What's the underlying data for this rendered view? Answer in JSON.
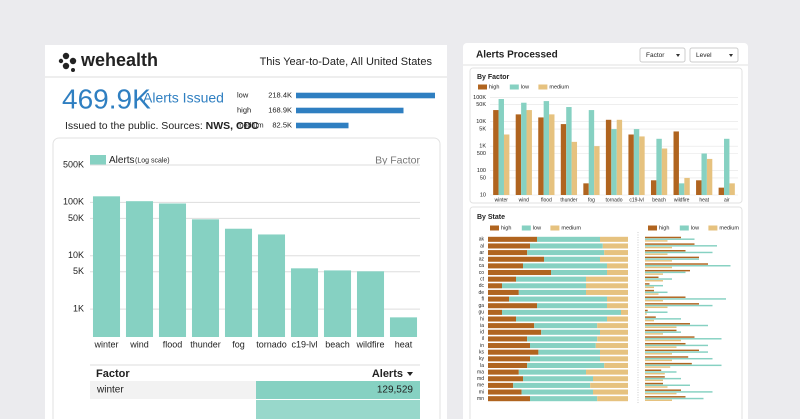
{
  "header": {
    "brand": "wehealth",
    "scope": "This Year-to-Date, All United States"
  },
  "summary": {
    "total": "469.9K",
    "total_label": "Alerts Issued",
    "note": "Issued to the public. Sources:",
    "sources": "NWS, CDC"
  },
  "panel": {
    "title": "Alerts Processed",
    "filters": [
      "Factor",
      "Level"
    ]
  },
  "table": {
    "columns": [
      "Factor",
      "Alerts"
    ],
    "rows": [
      [
        "winter",
        "129,529"
      ]
    ]
  },
  "chart_data": [
    {
      "type": "hbar",
      "categories": [
        "low",
        "high",
        "medium"
      ],
      "values": [
        218400,
        168900,
        82500
      ],
      "value_labels": [
        "218.4K",
        "168.9K",
        "82.5K"
      ],
      "color": "#2f7fc1",
      "xlim": [
        0,
        218400
      ]
    },
    {
      "type": "bar",
      "title": "By Factor",
      "legend": "Alerts",
      "note": "(Log scale)",
      "log_scale": true,
      "grid": true,
      "color": "#86d1c2",
      "categories": [
        "winter",
        "wind",
        "flood",
        "thunder",
        "fog",
        "tornado",
        "c19-lvl",
        "beach",
        "wildfire",
        "heat"
      ],
      "values": [
        129529,
        105000,
        95000,
        48000,
        32000,
        25000,
        5800,
        5300,
        5100,
        700
      ],
      "ylim": [
        300,
        500000
      ],
      "yticks": [
        {
          "value": 1000,
          "label": "1K"
        },
        {
          "value": 5000,
          "label": "5K"
        },
        {
          "value": 10000,
          "label": "10K"
        },
        {
          "value": 50000,
          "label": "50K"
        },
        {
          "value": 100000,
          "label": "100K"
        },
        {
          "value": 500000,
          "label": "500K"
        }
      ]
    },
    {
      "type": "grouped_bar",
      "title": "By Factor",
      "log_scale": true,
      "grid": true,
      "categories": [
        "winter",
        "wind",
        "flood",
        "thunder",
        "fog",
        "tornado",
        "c19-lvl",
        "beach",
        "wildfire",
        "heat",
        "air"
      ],
      "series": [
        {
          "name": "high",
          "color": "#b0641f",
          "values": [
            30000,
            20000,
            15000,
            8000,
            30,
            12000,
            3000,
            40,
            4000,
            40,
            20
          ]
        },
        {
          "name": "low",
          "color": "#86d1c2",
          "values": [
            85000,
            60000,
            70000,
            40000,
            30000,
            5000,
            5000,
            2000,
            30,
            500,
            2000
          ]
        },
        {
          "name": "medium",
          "color": "#e6c27f",
          "values": [
            3000,
            30000,
            20000,
            1500,
            1000,
            12000,
            2500,
            800,
            50,
            300,
            30
          ]
        }
      ],
      "ylim": [
        10,
        150000
      ],
      "yticks": [
        10,
        50,
        100,
        500,
        {
          "value": 1000,
          "label": "1K"
        },
        {
          "value": 5000,
          "label": "5K"
        },
        {
          "value": 10000,
          "label": "10K"
        },
        {
          "value": 50000,
          "label": "50K"
        },
        {
          "value": 100000,
          "label": "100K"
        }
      ]
    },
    {
      "type": "stacked_hbar",
      "title": "By State",
      "categories": [
        "ak",
        "al",
        "ar",
        "az",
        "ca",
        "co",
        "ct",
        "dc",
        "de",
        "fl",
        "ga",
        "gu",
        "hi",
        "ia",
        "id",
        "il",
        "in",
        "ks",
        "ky",
        "la",
        "ma",
        "md",
        "me",
        "mi",
        "mn"
      ],
      "series": [
        {
          "name": "high",
          "color": "#b0641f",
          "values": [
            35,
            30,
            28,
            40,
            25,
            45,
            20,
            10,
            22,
            15,
            35,
            10,
            20,
            33,
            38,
            28,
            30,
            36,
            30,
            28,
            22,
            25,
            18,
            24,
            30
          ]
        },
        {
          "name": "low",
          "color": "#86d1c2",
          "values": [
            45,
            52,
            55,
            40,
            60,
            40,
            50,
            60,
            48,
            70,
            50,
            85,
            65,
            45,
            42,
            50,
            47,
            44,
            50,
            55,
            48,
            50,
            55,
            51,
            48
          ]
        },
        {
          "name": "medium",
          "color": "#e6c27f",
          "values": [
            20,
            18,
            17,
            20,
            15,
            15,
            30,
            30,
            30,
            15,
            15,
            5,
            15,
            22,
            20,
            22,
            23,
            20,
            20,
            17,
            30,
            25,
            27,
            25,
            22
          ]
        }
      ],
      "xlim": [
        0,
        100
      ]
    },
    {
      "type": "grouped_hbar",
      "series": [
        {
          "name": "high",
          "color": "#b0641f",
          "values": [
            40,
            55,
            45,
            60,
            70,
            50,
            15,
            5,
            10,
            45,
            60,
            3,
            12,
            50,
            35,
            55,
            45,
            60,
            48,
            52,
            18,
            22,
            20,
            40,
            45
          ]
        },
        {
          "name": "low",
          "color": "#86d1c2",
          "values": [
            55,
            80,
            75,
            60,
            95,
            45,
            30,
            20,
            25,
            90,
            75,
            25,
            40,
            70,
            40,
            85,
            70,
            70,
            75,
            85,
            35,
            40,
            50,
            75,
            65
          ]
        },
        {
          "name": "medium",
          "color": "#e6c27f",
          "values": [
            25,
            30,
            25,
            30,
            30,
            20,
            20,
            10,
            15,
            20,
            25,
            2,
            10,
            35,
            20,
            40,
            35,
            30,
            30,
            28,
            22,
            20,
            25,
            35,
            30
          ]
        }
      ],
      "xlim": [
        0,
        100
      ]
    }
  ]
}
